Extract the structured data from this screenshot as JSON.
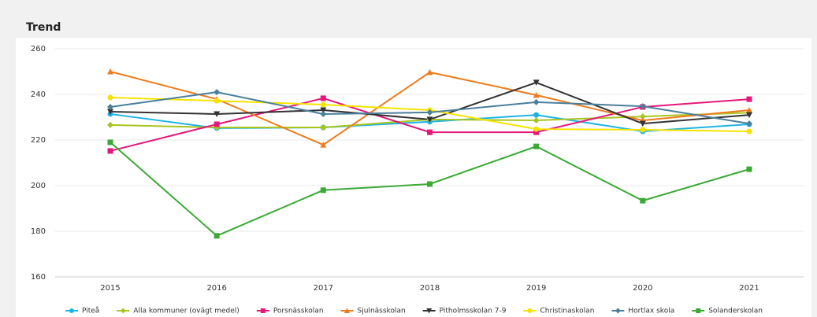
{
  "chart_data": {
    "type": "line",
    "title": "Trend",
    "categories": [
      "2015",
      "2016",
      "2017",
      "2018",
      "2019",
      "2020",
      "2021"
    ],
    "ylim": [
      160,
      260
    ],
    "yticks": [
      160,
      180,
      200,
      220,
      240,
      260
    ],
    "grid": true,
    "legend": "bottom",
    "series": [
      {
        "name": "Piteå",
        "color": "#1fb3e3",
        "marker": "circle",
        "values": [
          231.4,
          225.2,
          225.5,
          228,
          231,
          223.8,
          226.9
        ]
      },
      {
        "name": "Alla kommuner (ovägt medel)",
        "color": "#a8c520",
        "marker": "diamond",
        "values": [
          226.6,
          225.5,
          225.5,
          229,
          228.6,
          230.3,
          232
        ]
      },
      {
        "name": "Porsnässkolan",
        "color": "#e5177b",
        "marker": "square",
        "values": [
          215.2,
          226.9,
          238.3,
          223.4,
          223.4,
          234.5,
          237.9
        ]
      },
      {
        "name": "Sjulnässkolan",
        "color": "#f07b1c",
        "marker": "triangle",
        "values": [
          250,
          237.9,
          217.9,
          249.7,
          239.7,
          228.6,
          233.1
        ]
      },
      {
        "name": "Pitholmsskolan 7-9",
        "color": "#333333",
        "marker": "triangle-down",
        "values": [
          232.4,
          231.4,
          233.1,
          229,
          245.2,
          227.2,
          231
        ]
      },
      {
        "name": "Christinaskolan",
        "color": "#f7e300",
        "marker": "circle",
        "values": [
          238.6,
          237.2,
          235.5,
          233.1,
          224.8,
          224.5,
          223.8
        ]
      },
      {
        "name": "Hortlax skola",
        "color": "#4a7f9b",
        "marker": "diamond",
        "values": [
          234.5,
          241,
          231.4,
          232.1,
          236.6,
          234.8,
          227.2
        ]
      },
      {
        "name": "Solanderskolan",
        "color": "#3aaa35",
        "marker": "square",
        "values": [
          219,
          178,
          198,
          200.7,
          217.2,
          193.4,
          207.2
        ]
      }
    ]
  }
}
